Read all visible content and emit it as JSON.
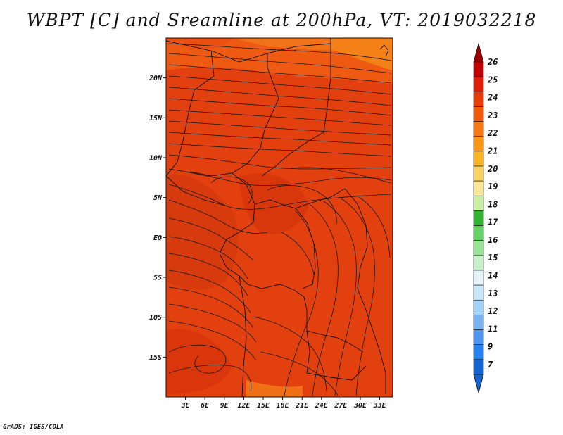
{
  "title": "WBPT [C] and Sreamline at 200hPa, VT: 2019032218",
  "footer": "GrADS: IGES/COLA",
  "map": {
    "type": "map",
    "variable": "WBPT",
    "units": "C",
    "level": "200hPa",
    "valid_time": "2019032218",
    "lon_range": [
      0,
      35
    ],
    "lat_range": [
      -20,
      25
    ],
    "lat_ticks": [
      {
        "value": 20,
        "label": "20N"
      },
      {
        "value": 15,
        "label": "15N"
      },
      {
        "value": 10,
        "label": "10N"
      },
      {
        "value": 5,
        "label": "5N"
      },
      {
        "value": 0,
        "label": "EQ"
      },
      {
        "value": -5,
        "label": "5S"
      },
      {
        "value": -10,
        "label": "10S"
      },
      {
        "value": -15,
        "label": "15S"
      }
    ],
    "lon_ticks": [
      {
        "value": 3,
        "label": "3E"
      },
      {
        "value": 6,
        "label": "6E"
      },
      {
        "value": 9,
        "label": "9E"
      },
      {
        "value": 12,
        "label": "12E"
      },
      {
        "value": 15,
        "label": "15E"
      },
      {
        "value": 18,
        "label": "18E"
      },
      {
        "value": 21,
        "label": "21E"
      },
      {
        "value": 24,
        "label": "24E"
      },
      {
        "value": 27,
        "label": "27E"
      },
      {
        "value": 30,
        "label": "30E"
      },
      {
        "value": 33,
        "label": "33E"
      }
    ]
  },
  "colorbar": {
    "labels": [
      "26",
      "25",
      "24",
      "23",
      "22",
      "21",
      "20",
      "19",
      "18",
      "17",
      "16",
      "15",
      "14",
      "13",
      "12",
      "11",
      "9",
      "7"
    ],
    "colors": [
      "#c00000",
      "#dc1e0a",
      "#e83c0a",
      "#f05a0a",
      "#f87814",
      "#fa9614",
      "#fab428",
      "#fad264",
      "#fae696",
      "#c8f0a0",
      "#32b432",
      "#64d264",
      "#96e696",
      "#c8f0c8",
      "#e6f4fa",
      "#c8e6fa",
      "#a0d2fa",
      "#78b4f0",
      "#5096f0",
      "#2882f0",
      "#1464d2"
    ],
    "top_color": "#a00000",
    "bottom_color": "#1464d2"
  }
}
